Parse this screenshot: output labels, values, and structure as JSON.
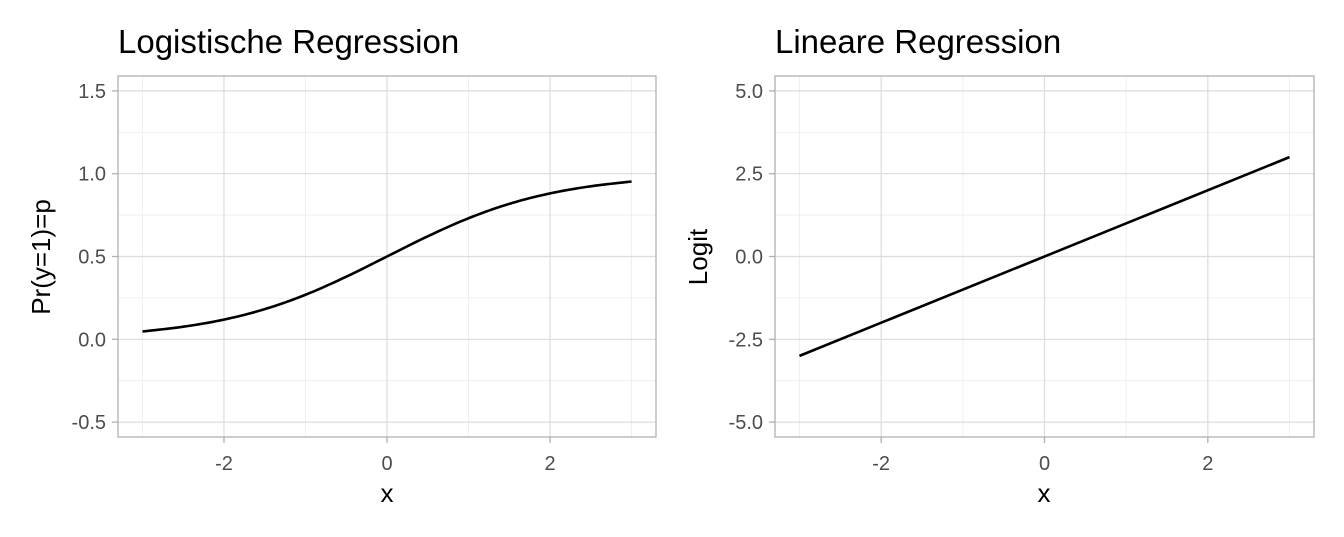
{
  "chart_data": [
    {
      "type": "line",
      "title": "Logistische Regression",
      "xlabel": "x",
      "ylabel": "Pr(y=1)=p",
      "xlim": [
        -3.3,
        3.3
      ],
      "ylim": [
        -0.59,
        1.59
      ],
      "x_ticks": [
        "-2",
        "0",
        "2"
      ],
      "x_tick_values": [
        -2,
        0,
        2
      ],
      "y_ticks": [
        "-0.5",
        "0.0",
        "0.5",
        "1.0",
        "1.5"
      ],
      "y_tick_values": [
        -0.5,
        0.0,
        0.5,
        1.0,
        1.5
      ],
      "grid": true,
      "line_color": "#000000",
      "x": [
        -3.0,
        -2.5,
        -2.0,
        -1.5,
        -1.0,
        -0.5,
        0.0,
        0.5,
        1.0,
        1.5,
        2.0,
        2.5,
        3.0
      ],
      "y": [
        0.047,
        0.076,
        0.119,
        0.182,
        0.269,
        0.378,
        0.5,
        0.622,
        0.731,
        0.818,
        0.881,
        0.924,
        0.953
      ]
    },
    {
      "type": "line",
      "title": "Lineare Regression",
      "xlabel": "x",
      "ylabel": "Logit",
      "xlim": [
        -3.3,
        3.3
      ],
      "ylim": [
        -5.45,
        5.45
      ],
      "x_ticks": [
        "-2",
        "0",
        "2"
      ],
      "x_tick_values": [
        -2,
        0,
        2
      ],
      "y_ticks": [
        "-5.0",
        "-2.5",
        "0.0",
        "2.5",
        "5.0"
      ],
      "y_tick_values": [
        -5.0,
        -2.5,
        0.0,
        2.5,
        5.0
      ],
      "grid": true,
      "line_color": "#000000",
      "x": [
        -3.0,
        3.0
      ],
      "y": [
        -3.0,
        3.0
      ]
    }
  ]
}
